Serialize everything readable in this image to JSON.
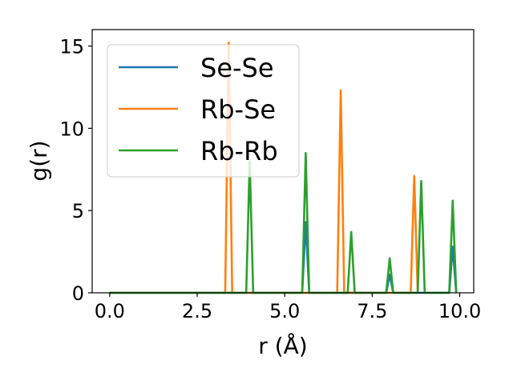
{
  "chart_data": {
    "type": "line",
    "xlabel": "r (Å)",
    "ylabel": "g(r)",
    "xlim": [
      -0.5,
      10.4
    ],
    "ylim": [
      0,
      16
    ],
    "x_ticks": [
      0.0,
      2.5,
      5.0,
      7.5,
      10.0
    ],
    "x_tick_labels": [
      "0.0",
      "2.5",
      "5.0",
      "7.5",
      "10.0"
    ],
    "y_ticks": [
      0,
      5,
      10,
      15
    ],
    "y_tick_labels": [
      "0",
      "5",
      "10",
      "15"
    ],
    "grid": false,
    "legend_position": "top-left",
    "series": [
      {
        "name": "Se-Se",
        "color": "#1f77b4",
        "x": [
          0.0,
          5.5,
          5.6,
          5.7,
          7.9,
          8.0,
          8.1,
          9.7,
          9.8,
          9.9
        ],
        "y": [
          0.0,
          0.0,
          4.3,
          0.0,
          0.0,
          1.1,
          0.0,
          0.0,
          2.8,
          0.0
        ]
      },
      {
        "name": "Rb-Se",
        "color": "#ff7f0e",
        "x": [
          0.0,
          3.3,
          3.4,
          3.5,
          6.5,
          6.6,
          6.7,
          8.6,
          8.7,
          8.8
        ],
        "y": [
          0.0,
          0.0,
          15.2,
          0.0,
          0.0,
          12.3,
          0.0,
          0.0,
          7.1,
          0.0
        ]
      },
      {
        "name": "Rb-Rb",
        "color": "#2ca02c",
        "x": [
          0.0,
          3.9,
          4.0,
          4.1,
          5.5,
          5.6,
          5.7,
          6.8,
          6.9,
          7.0,
          7.9,
          8.0,
          8.1,
          8.8,
          8.9,
          9.0,
          9.7,
          9.8,
          9.9
        ],
        "y": [
          0.0,
          0.0,
          8.0,
          0.0,
          0.0,
          8.5,
          0.0,
          0.0,
          3.7,
          0.0,
          0.0,
          2.1,
          0.0,
          0.0,
          6.8,
          0.0,
          0.0,
          5.6,
          0.0
        ]
      }
    ]
  }
}
